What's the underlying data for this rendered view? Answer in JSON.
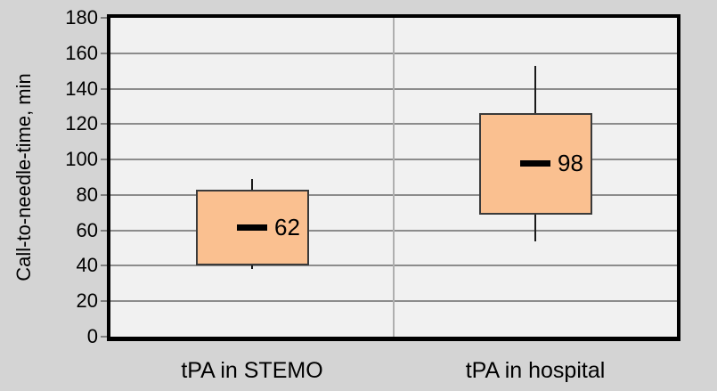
{
  "chart_data": {
    "type": "boxplot",
    "title": "",
    "ylabel": "Call-to-needle-time, min",
    "xlabel": "",
    "ylim": [
      0,
      180
    ],
    "yticks": [
      0,
      20,
      40,
      60,
      80,
      100,
      120,
      140,
      160,
      180
    ],
    "grid": true,
    "legend": false,
    "categories": [
      "tPA in STEMO",
      "tPA in hospital"
    ],
    "series": [
      {
        "category": "tPA in STEMO",
        "whisker_low": 38,
        "q1": 40,
        "median": 62,
        "q3": 83,
        "whisker_high": 89,
        "median_label": "62"
      },
      {
        "category": "tPA in hospital",
        "whisker_low": 54,
        "q1": 69,
        "median": 98,
        "q3": 126,
        "whisker_high": 153,
        "median_label": "98"
      }
    ],
    "colors": {
      "page_bg": "#D4D4D4",
      "plot_bg": "#F1F1F1",
      "axis_border": "#000000",
      "gridline": "#8C8C8C",
      "divider": "#AFAFAF",
      "tick_mark": "#7F7F7F",
      "box_fill": "#FAC090",
      "box_border": "#3A3A3A",
      "whisker": "#1A1A1A",
      "median": "#000000",
      "text": "#000000"
    }
  }
}
